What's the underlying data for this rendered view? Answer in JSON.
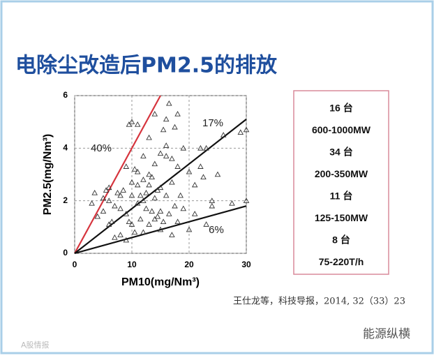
{
  "title": "电除尘改造后PM2.5的排放",
  "chart_data": {
    "type": "scatter",
    "xlabel": "PM10(mg/Nm³)",
    "ylabel": "PM2.5(mg/Nm³)",
    "xlim": [
      0,
      30
    ],
    "ylim": [
      0,
      6
    ],
    "xticks": [
      0,
      10,
      20,
      30
    ],
    "yticks": [
      0,
      2,
      4,
      6
    ],
    "grid": true,
    "marker_color": "#333333",
    "x": [
      3,
      3.5,
      4,
      5,
      5,
      5.5,
      6,
      6,
      6,
      6.5,
      7,
      7,
      7.5,
      8,
      8,
      8,
      8.5,
      9,
      9,
      9,
      9.5,
      9.5,
      10,
      10,
      10,
      10,
      10.5,
      10.5,
      11,
      11,
      11,
      11,
      11.5,
      11.5,
      12,
      12,
      12,
      12,
      12.5,
      12.5,
      13,
      13,
      13,
      13,
      13.5,
      13.5,
      14,
      14,
      14,
      14,
      14.5,
      14.5,
      15,
      15,
      15,
      15,
      15.5,
      15.5,
      16,
      16,
      16,
      16,
      16.5,
      16.5,
      17,
      17,
      17,
      17.5,
      17.5,
      18,
      18,
      18,
      18.5,
      19,
      19,
      20,
      20,
      21,
      21,
      22,
      22,
      22.5,
      23,
      23,
      24,
      24,
      25,
      26,
      27.5,
      29,
      30,
      30
    ],
    "y": [
      1.9,
      2.3,
      1.4,
      1.6,
      2.1,
      2.4,
      2.5,
      1.1,
      2,
      1.2,
      0.6,
      1.8,
      2.3,
      2.2,
      1.7,
      0.7,
      2.4,
      1.5,
      0.5,
      3.3,
      1.2,
      4.9,
      5,
      2.7,
      2.2,
      1.1,
      0.8,
      3.2,
      3.1,
      1.9,
      2.6,
      4.9,
      2.2,
      1.3,
      2,
      2.8,
      0.8,
      3.7,
      1.7,
      2.3,
      2.6,
      1.1,
      3,
      4.4,
      1.6,
      2.9,
      1.3,
      2.1,
      3.4,
      5.3,
      1.4,
      2.4,
      3.8,
      0.9,
      1.6,
      2.5,
      4.7,
      1.2,
      3.7,
      2.2,
      4.1,
      5.1,
      5.7,
      1.5,
      3.6,
      0.7,
      2.7,
      1.8,
      4.8,
      5.3,
      1.2,
      3.3,
      2.2,
      4,
      1.7,
      3.1,
      0.9,
      2.6,
      1.5,
      3.3,
      4,
      2.9,
      4,
      1.1,
      2,
      1.8,
      3,
      4.5,
      1.9,
      4.6,
      2,
      4.7
    ],
    "lines": [
      {
        "ratio": 40,
        "label": "40%",
        "color": "#d6343d"
      },
      {
        "ratio": 17,
        "label": "17%",
        "color": "#111111"
      },
      {
        "ratio": 6,
        "label": "6%",
        "color": "#111111"
      }
    ]
  },
  "info_box": [
    "16 台",
    "600-1000MW",
    "34 台",
    "200-350MW",
    "11 台",
    "125-150MW",
    "8 台",
    "75-220T/h"
  ],
  "citation": "王仕龙等，科技导报，2014, 32（33）23",
  "watermark_right": "能源纵横",
  "watermark_left": "A股情报"
}
